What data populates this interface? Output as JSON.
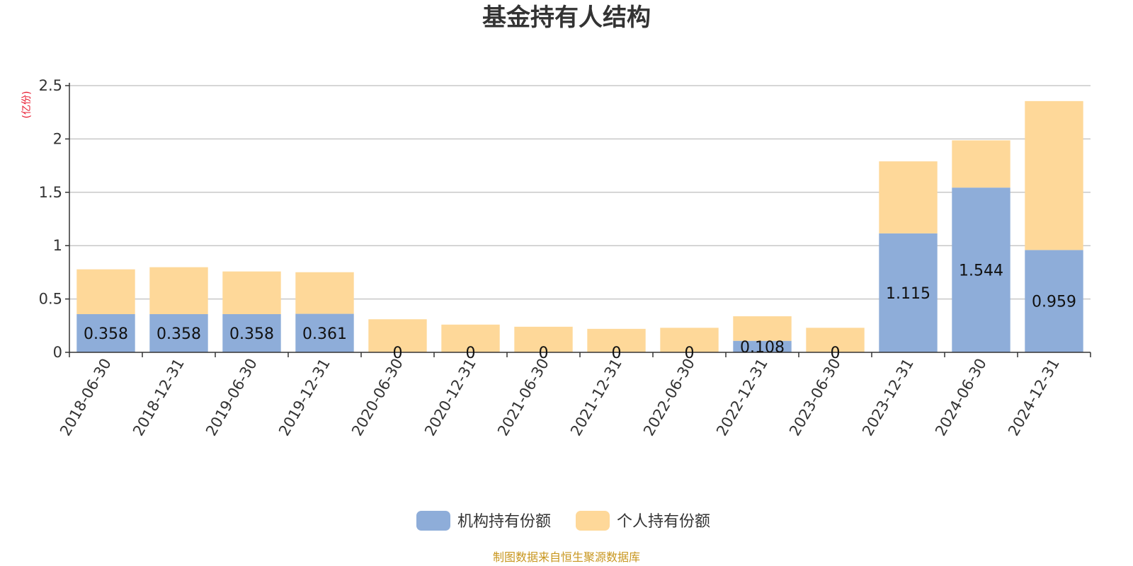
{
  "chart_data": {
    "type": "bar",
    "stacked": true,
    "title": "基金持有人结构",
    "unit_label": "(亿份)",
    "categories": [
      "2018-06-30",
      "2018-12-31",
      "2019-06-30",
      "2019-12-31",
      "2020-06-30",
      "2020-12-31",
      "2021-06-30",
      "2021-12-31",
      "2022-06-30",
      "2022-12-31",
      "2023-06-30",
      "2023-12-31",
      "2024-06-30",
      "2024-12-31"
    ],
    "series": [
      {
        "name": "机构持有份额",
        "color": "#8eadd9",
        "values": [
          0.358,
          0.358,
          0.358,
          0.361,
          0,
          0,
          0,
          0,
          0,
          0.108,
          0,
          1.115,
          1.544,
          0.959
        ],
        "labels": [
          "0.358",
          "0.358",
          "0.358",
          "0.361",
          "0",
          "0",
          "0",
          "0",
          "0",
          "0.108",
          "0",
          "1.115",
          "1.544",
          "0.959"
        ]
      },
      {
        "name": "个人持有份额",
        "color": "#fed899",
        "values": [
          0.42,
          0.44,
          0.4,
          0.39,
          0.31,
          0.26,
          0.24,
          0.22,
          0.23,
          0.23,
          0.23,
          0.675,
          0.443,
          1.396
        ]
      }
    ],
    "yticks": [
      "0",
      "0.5",
      "1",
      "1.5",
      "2",
      "2.5"
    ],
    "ylim": [
      0,
      2.5
    ],
    "grid": true,
    "legend_position": "bottom-center"
  },
  "source_note": "制图数据来自恒生聚源数据库"
}
